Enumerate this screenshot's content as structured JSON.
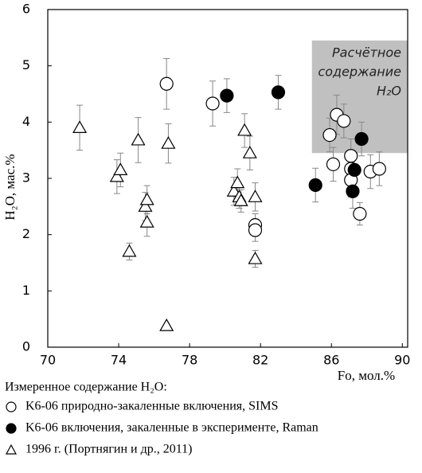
{
  "chart_data": {
    "type": "scatter",
    "xlabel": "Fo, мол.%",
    "ylabel": "H₂O, мас.%",
    "xlim": [
      70,
      90.3
    ],
    "ylim": [
      0,
      6
    ],
    "xticks": [
      70,
      74,
      78,
      82,
      86,
      90
    ],
    "yticks": [
      0,
      1,
      2,
      3,
      4,
      5,
      6
    ],
    "legend_title": "Измеренное содержание H₂O:",
    "shaded_region": {
      "x": [
        84.9,
        90.3
      ],
      "y": [
        3.45,
        5.45
      ],
      "color": "#c0c0c0",
      "label": [
        "Расчётное",
        "содержание",
        "H₂O"
      ]
    },
    "series": [
      {
        "name": "K6-06 природно-закаленные включения, SIMS",
        "marker": "circle-open",
        "color": "#000000",
        "x": [
          76.7,
          79.3,
          81.7,
          81.7,
          85.9,
          86.3,
          86.7,
          86.1,
          87.1,
          87.1,
          87.1,
          88.2,
          88.7,
          87.6
        ],
        "values": [
          4.68,
          4.33,
          2.17,
          2.08,
          3.77,
          4.13,
          4.02,
          3.25,
          3.4,
          3.17,
          2.97,
          3.12,
          3.17,
          2.37
        ],
        "yerr": [
          0.45,
          0.4,
          0.2,
          0.2,
          0.3,
          0.35,
          0.3,
          0.3,
          0.3,
          0.3,
          0.3,
          0.3,
          0.3,
          0.2
        ]
      },
      {
        "name": "K6-06 включения, закаленные в эксперименте, Raman",
        "marker": "circle-filled",
        "color": "#000000",
        "x": [
          80.1,
          83.0,
          85.1,
          87.2,
          87.7,
          87.3
        ],
        "values": [
          4.47,
          4.53,
          2.88,
          2.77,
          3.7,
          3.15
        ],
        "yerr": [
          0.3,
          0.3,
          0.3,
          0.3,
          0.3,
          0.3
        ]
      },
      {
        "name": "1996 г. (Портнягин и др., 2011)",
        "marker": "triangle-open",
        "color": "#000000",
        "x": [
          71.8,
          73.9,
          74.1,
          75.1,
          75.5,
          75.6,
          75.6,
          74.6,
          76.8,
          76.7,
          80.5,
          80.7,
          80.8,
          80.9,
          81.1,
          81.4,
          81.7,
          81.7
        ],
        "values": [
          3.9,
          3.03,
          3.15,
          3.68,
          2.5,
          2.62,
          2.22,
          1.7,
          3.62,
          0.38,
          2.77,
          2.92,
          2.67,
          2.6,
          3.85,
          3.45,
          2.67,
          1.57
        ],
        "yerr": [
          0.4,
          0.3,
          0.3,
          0.4,
          0.25,
          0.25,
          0.25,
          0.15,
          0.35,
          0.0,
          0.25,
          0.25,
          0.2,
          0.2,
          0.3,
          0.3,
          0.25,
          0.15
        ]
      }
    ]
  }
}
